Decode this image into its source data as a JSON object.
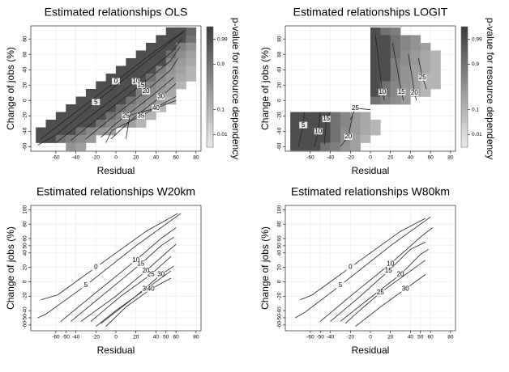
{
  "chart_data": [
    {
      "type": "contour",
      "title": "Estimated relationships OLS",
      "x_label": "Residual",
      "y_label": "Change of jobs (%)",
      "xlim": [
        -85,
        85
      ],
      "ylim": [
        -66,
        97
      ],
      "xticks": [
        -60,
        -40,
        -20,
        0,
        20,
        40,
        60,
        80
      ],
      "yticks": [
        -60,
        -40,
        -20,
        0,
        20,
        40,
        60,
        80
      ],
      "grid": true,
      "colorbar": {
        "label": "p-value for resource dependency",
        "scale": "logit",
        "clim": [
          0.003,
          0.997
        ],
        "ticks": [
          0.01,
          0.1,
          0.9,
          0.99
        ]
      },
      "cells": [
        {
          "y": 90,
          "x0": 50,
          "p": [
            0.99,
            0.99,
            0.95
          ]
        },
        {
          "y": 80,
          "x0": 40,
          "p": [
            0.99,
            0.99,
            0.99,
            0.9
          ]
        },
        {
          "y": 70,
          "x0": 30,
          "p": [
            0.99,
            0.99,
            0.99,
            0.8,
            0.5
          ]
        },
        {
          "y": 60,
          "x0": 20,
          "p": [
            0.99,
            0.99,
            0.99,
            0.9,
            0.6,
            0.3
          ]
        },
        {
          "y": 50,
          "x0": 10,
          "p": [
            0.99,
            0.99,
            0.99,
            0.99,
            0.7,
            0.4,
            0.2
          ]
        },
        {
          "y": 40,
          "x0": 0,
          "p": [
            0.99,
            0.99,
            0.99,
            0.99,
            0.8,
            0.5,
            0.3,
            0.1
          ]
        },
        {
          "y": 30,
          "x0": -10,
          "p": [
            0.99,
            0.99,
            0.99,
            0.99,
            0.9,
            0.6,
            0.4,
            0.2,
            0.1
          ]
        },
        {
          "y": 20,
          "x0": -20,
          "p": [
            0.99,
            0.99,
            0.99,
            0.99,
            0.99,
            0.7,
            0.5,
            0.3,
            0.1
          ]
        },
        {
          "y": 10,
          "x0": -30,
          "p": [
            0.99,
            0.99,
            0.99,
            0.99,
            0.99,
            0.8,
            0.6,
            0.4,
            0.2
          ]
        },
        {
          "y": 0,
          "x0": -40,
          "p": [
            0.99,
            0.99,
            0.99,
            0.99,
            0.99,
            0.9,
            0.7,
            0.5,
            0.3,
            0.1
          ]
        },
        {
          "y": -10,
          "x0": -50,
          "p": [
            0.99,
            0.99,
            0.99,
            0.99,
            0.99,
            0.9,
            0.7,
            0.5,
            0.3,
            0.1
          ]
        },
        {
          "y": -20,
          "x0": -60,
          "p": [
            0.99,
            0.99,
            0.99,
            0.99,
            0.99,
            0.9,
            0.7,
            0.5,
            0.3,
            0.1
          ]
        },
        {
          "y": -30,
          "x0": -70,
          "p": [
            0.99,
            0.99,
            0.99,
            0.99,
            0.99,
            0.9,
            0.7,
            0.5,
            0.3,
            0.1
          ]
        },
        {
          "y": -40,
          "x0": -80,
          "p": [
            0.99,
            0.99,
            0.99,
            0.99,
            0.9,
            0.7,
            0.5,
            0.3
          ]
        },
        {
          "y": -50,
          "x0": -80,
          "p": [
            0.99,
            0.99,
            0.9,
            0.8,
            0.6,
            0.4
          ]
        },
        {
          "y": -60,
          "x0": -50,
          "p": [
            0.5,
            0.3
          ]
        }
      ],
      "contours": [
        {
          "level": 0,
          "x": [
            -75,
            -40,
            0,
            40,
            70
          ],
          "y": [
            -50,
            -15,
            25,
            65,
            92
          ]
        },
        {
          "level": 5,
          "x": [
            -78,
            -60,
            -20,
            20,
            68
          ],
          "y": [
            -58,
            -45,
            -2,
            40,
            90
          ]
        },
        {
          "level": 10,
          "x": [
            -60,
            -20,
            20,
            55,
            66
          ],
          "y": [
            -55,
            -15,
            25,
            62,
            80
          ]
        },
        {
          "level": 15,
          "x": [
            -45,
            -10,
            25,
            55,
            64
          ],
          "y": [
            -52,
            -15,
            20,
            52,
            70
          ]
        },
        {
          "level": 20,
          "x": [
            -30,
            0,
            30,
            55,
            62
          ],
          "y": [
            -50,
            -18,
            12,
            40,
            55
          ]
        },
        {
          "level": 25,
          "x": [
            -15,
            0,
            10,
            35,
            58
          ],
          "y": [
            -48,
            -30,
            -20,
            5,
            30
          ]
        },
        {
          "level": 30,
          "x": [
            -5,
            20,
            45,
            60
          ],
          "y": [
            -50,
            -20,
            5,
            22
          ]
        },
        {
          "level": 35,
          "x": [
            -10,
            -4,
            25,
            60
          ],
          "y": [
            -55,
            -39,
            -20,
            5
          ]
        },
        {
          "level": 40,
          "x": [
            10,
            14,
            40,
            60
          ],
          "y": [
            -50,
            -19,
            -10,
            0
          ]
        }
      ]
    },
    {
      "type": "contour",
      "title": "Estimated relationships LOGIT",
      "x_label": "Residual",
      "y_label": "Change of jobs (%)",
      "xlim": [
        -85,
        85
      ],
      "ylim": [
        -66,
        97
      ],
      "xticks": [
        -60,
        -40,
        -20,
        0,
        20,
        40,
        60,
        80
      ],
      "yticks": [
        -60,
        -40,
        -20,
        0,
        20,
        40,
        60,
        80
      ],
      "grid": true,
      "colorbar": {
        "label": "p-value for resource dependency",
        "scale": "logit",
        "clim": [
          0.003,
          0.997
        ],
        "ticks": [
          0.01,
          0.1,
          0.9,
          0.99
        ]
      },
      "cells": [
        {
          "y": 90,
          "x0": 0,
          "p": [
            0.99,
            0.9,
            0.8
          ]
        },
        {
          "y": 80,
          "x0": 0,
          "p": [
            0.99,
            0.99,
            0.9,
            0.7,
            0.5
          ]
        },
        {
          "y": 70,
          "x0": 0,
          "p": [
            0.99,
            0.99,
            0.9,
            0.7,
            0.5,
            0.3
          ]
        },
        {
          "y": 60,
          "x0": 0,
          "p": [
            0.99,
            0.99,
            0.9,
            0.6,
            0.4,
            0.2,
            0.1
          ]
        },
        {
          "y": 50,
          "x0": 0,
          "p": [
            0.99,
            0.99,
            0.8,
            0.6,
            0.4,
            0.2,
            0.1
          ]
        },
        {
          "y": 40,
          "x0": 0,
          "p": [
            0.99,
            0.99,
            0.8,
            0.5,
            0.3,
            0.2,
            0.1
          ]
        },
        {
          "y": 30,
          "x0": 0,
          "p": [
            0.99,
            0.99,
            0.8,
            0.5,
            0.3,
            0.1,
            0.1
          ]
        },
        {
          "y": 20,
          "x0": 0,
          "p": [
            0.99,
            0.9,
            0.7,
            0.5,
            0.3,
            0.1,
            0.1
          ]
        },
        {
          "y": 10,
          "x0": 0,
          "p": [
            0.99,
            0.9,
            0.7,
            0.4,
            0.2,
            0.1
          ]
        },
        {
          "y": 0,
          "x0": 0,
          "p": [
            0.9,
            0.8,
            0.6,
            0.4
          ]
        },
        {
          "y": -20,
          "x0": -80,
          "p": [
            0.99,
            0.99,
            0.99,
            0.99,
            0.9,
            0.7,
            0.4,
            0.2
          ]
        },
        {
          "y": -30,
          "x0": -80,
          "p": [
            0.99,
            0.99,
            0.99,
            0.99,
            0.9,
            0.7,
            0.4,
            0.2,
            0.1
          ]
        },
        {
          "y": -40,
          "x0": -80,
          "p": [
            0.99,
            0.99,
            0.99,
            0.99,
            0.9,
            0.6,
            0.4,
            0.2,
            0.1
          ]
        },
        {
          "y": -50,
          "x0": -80,
          "p": [
            0.99,
            0.99,
            0.99,
            0.99,
            0.9,
            0.6,
            0.3,
            0.1
          ]
        },
        {
          "y": -60,
          "x0": -80,
          "p": [
            0.99,
            0.99,
            0.99,
            0.9,
            0.8,
            0.5,
            0.3
          ]
        }
      ],
      "contours": [
        {
          "level": 5,
          "x": [
            -72,
            -67,
            -66
          ],
          "y": [
            -60,
            -32,
            -15
          ]
        },
        {
          "level": 10,
          "x": [
            -56,
            -52,
            -50
          ],
          "y": [
            -60,
            -40,
            -15
          ]
        },
        {
          "level": 15,
          "x": [
            -46,
            -44,
            -40
          ],
          "y": [
            -58,
            -24,
            -15
          ]
        },
        {
          "level": 20,
          "x": [
            -30,
            -22,
            -18
          ],
          "y": [
            -60,
            -47,
            -20
          ]
        },
        {
          "level": 25,
          "x": [
            -20,
            -15,
            0
          ],
          "y": [
            -25,
            -10,
            -12
          ]
        },
        {
          "level": 10,
          "x": [
            5,
            12,
            14
          ],
          "y": [
            85,
            11,
            0
          ]
        },
        {
          "level": 15,
          "x": [
            22,
            31,
            33
          ],
          "y": [
            75,
            11,
            0
          ]
        },
        {
          "level": 20,
          "x": [
            38,
            44,
            46
          ],
          "y": [
            60,
            10,
            0
          ]
        },
        {
          "level": 25,
          "x": [
            48,
            52,
            56
          ],
          "y": [
            55,
            30,
            15
          ]
        }
      ]
    },
    {
      "type": "contour",
      "title": "Estimated relationships W20km",
      "x_label": "Residual",
      "y_label": "Change of jobs (%)",
      "xlim": [
        -85,
        85
      ],
      "ylim": [
        -68,
        106
      ],
      "xticks": [
        -60,
        -50,
        -40,
        -20,
        0,
        20,
        40,
        50,
        60,
        80
      ],
      "yticks": [
        -60,
        -50,
        -40,
        -20,
        0,
        20,
        40,
        50,
        60,
        80,
        100
      ],
      "grid": true,
      "contours": [
        {
          "level": 0,
          "x": [
            -75,
            -58,
            -20,
            30,
            62
          ],
          "y": [
            -25,
            -18,
            20,
            70,
            95
          ]
        },
        {
          "level": 5,
          "x": [
            -78,
            -70,
            -30,
            20,
            65
          ],
          "y": [
            -50,
            -45,
            -5,
            50,
            95
          ]
        },
        {
          "level": 10,
          "x": [
            -55,
            -20,
            20,
            45,
            60
          ],
          "y": [
            -55,
            -15,
            30,
            60,
            75
          ]
        },
        {
          "level": 15,
          "x": [
            -45,
            -10,
            25,
            45,
            58
          ],
          "y": [
            -55,
            -15,
            25,
            50,
            62
          ]
        },
        {
          "level": 20,
          "x": [
            -35,
            0,
            30,
            50,
            60
          ],
          "y": [
            -55,
            -20,
            15,
            40,
            52
          ]
        },
        {
          "level": 25,
          "x": [
            -25,
            5,
            35,
            55
          ],
          "y": [
            -55,
            -20,
            10,
            35
          ]
        },
        {
          "level": 30,
          "x": [
            -15,
            20,
            45,
            58
          ],
          "y": [
            -58,
            -20,
            10,
            22
          ]
        },
        {
          "level": 35,
          "x": [
            -20,
            0,
            30,
            55
          ],
          "y": [
            -62,
            -40,
            -10,
            15
          ]
        },
        {
          "level": 40,
          "x": [
            -10,
            10,
            35,
            55
          ],
          "y": [
            -62,
            -35,
            -10,
            5
          ]
        }
      ]
    },
    {
      "type": "contour",
      "title": "Estimated relationships W80km",
      "x_label": "Residual",
      "y_label": "Change of jobs (%)",
      "xlim": [
        -85,
        85
      ],
      "ylim": [
        -68,
        106
      ],
      "xticks": [
        -60,
        -50,
        -40,
        -20,
        0,
        20,
        40,
        50,
        60,
        80
      ],
      "yticks": [
        -60,
        -50,
        -40,
        -20,
        0,
        20,
        40,
        50,
        60,
        80,
        100
      ],
      "grid": true,
      "contours": [
        {
          "level": 0,
          "x": [
            -70,
            -58,
            -20,
            30,
            55
          ],
          "y": [
            -25,
            -18,
            20,
            70,
            88
          ]
        },
        {
          "level": 5,
          "x": [
            -75,
            -65,
            -30,
            20,
            60
          ],
          "y": [
            -50,
            -42,
            -5,
            50,
            90
          ]
        },
        {
          "level": 10,
          "x": [
            -50,
            -20,
            20,
            50,
            62
          ],
          "y": [
            -55,
            -20,
            25,
            62,
            75
          ]
        },
        {
          "level": 15,
          "x": [
            -40,
            -10,
            18,
            40,
            55
          ],
          "y": [
            -55,
            -20,
            15,
            45,
            55
          ]
        },
        {
          "level": 20,
          "x": [
            -30,
            0,
            30,
            50,
            58
          ],
          "y": [
            -55,
            -22,
            10,
            38,
            45
          ]
        },
        {
          "level": 25,
          "x": [
            -25,
            -15,
            10,
            40,
            55
          ],
          "y": [
            -58,
            -45,
            -15,
            15,
            30
          ]
        },
        {
          "level": 30,
          "x": [
            -15,
            10,
            35,
            55
          ],
          "y": [
            -62,
            -35,
            -10,
            10
          ]
        }
      ]
    }
  ]
}
